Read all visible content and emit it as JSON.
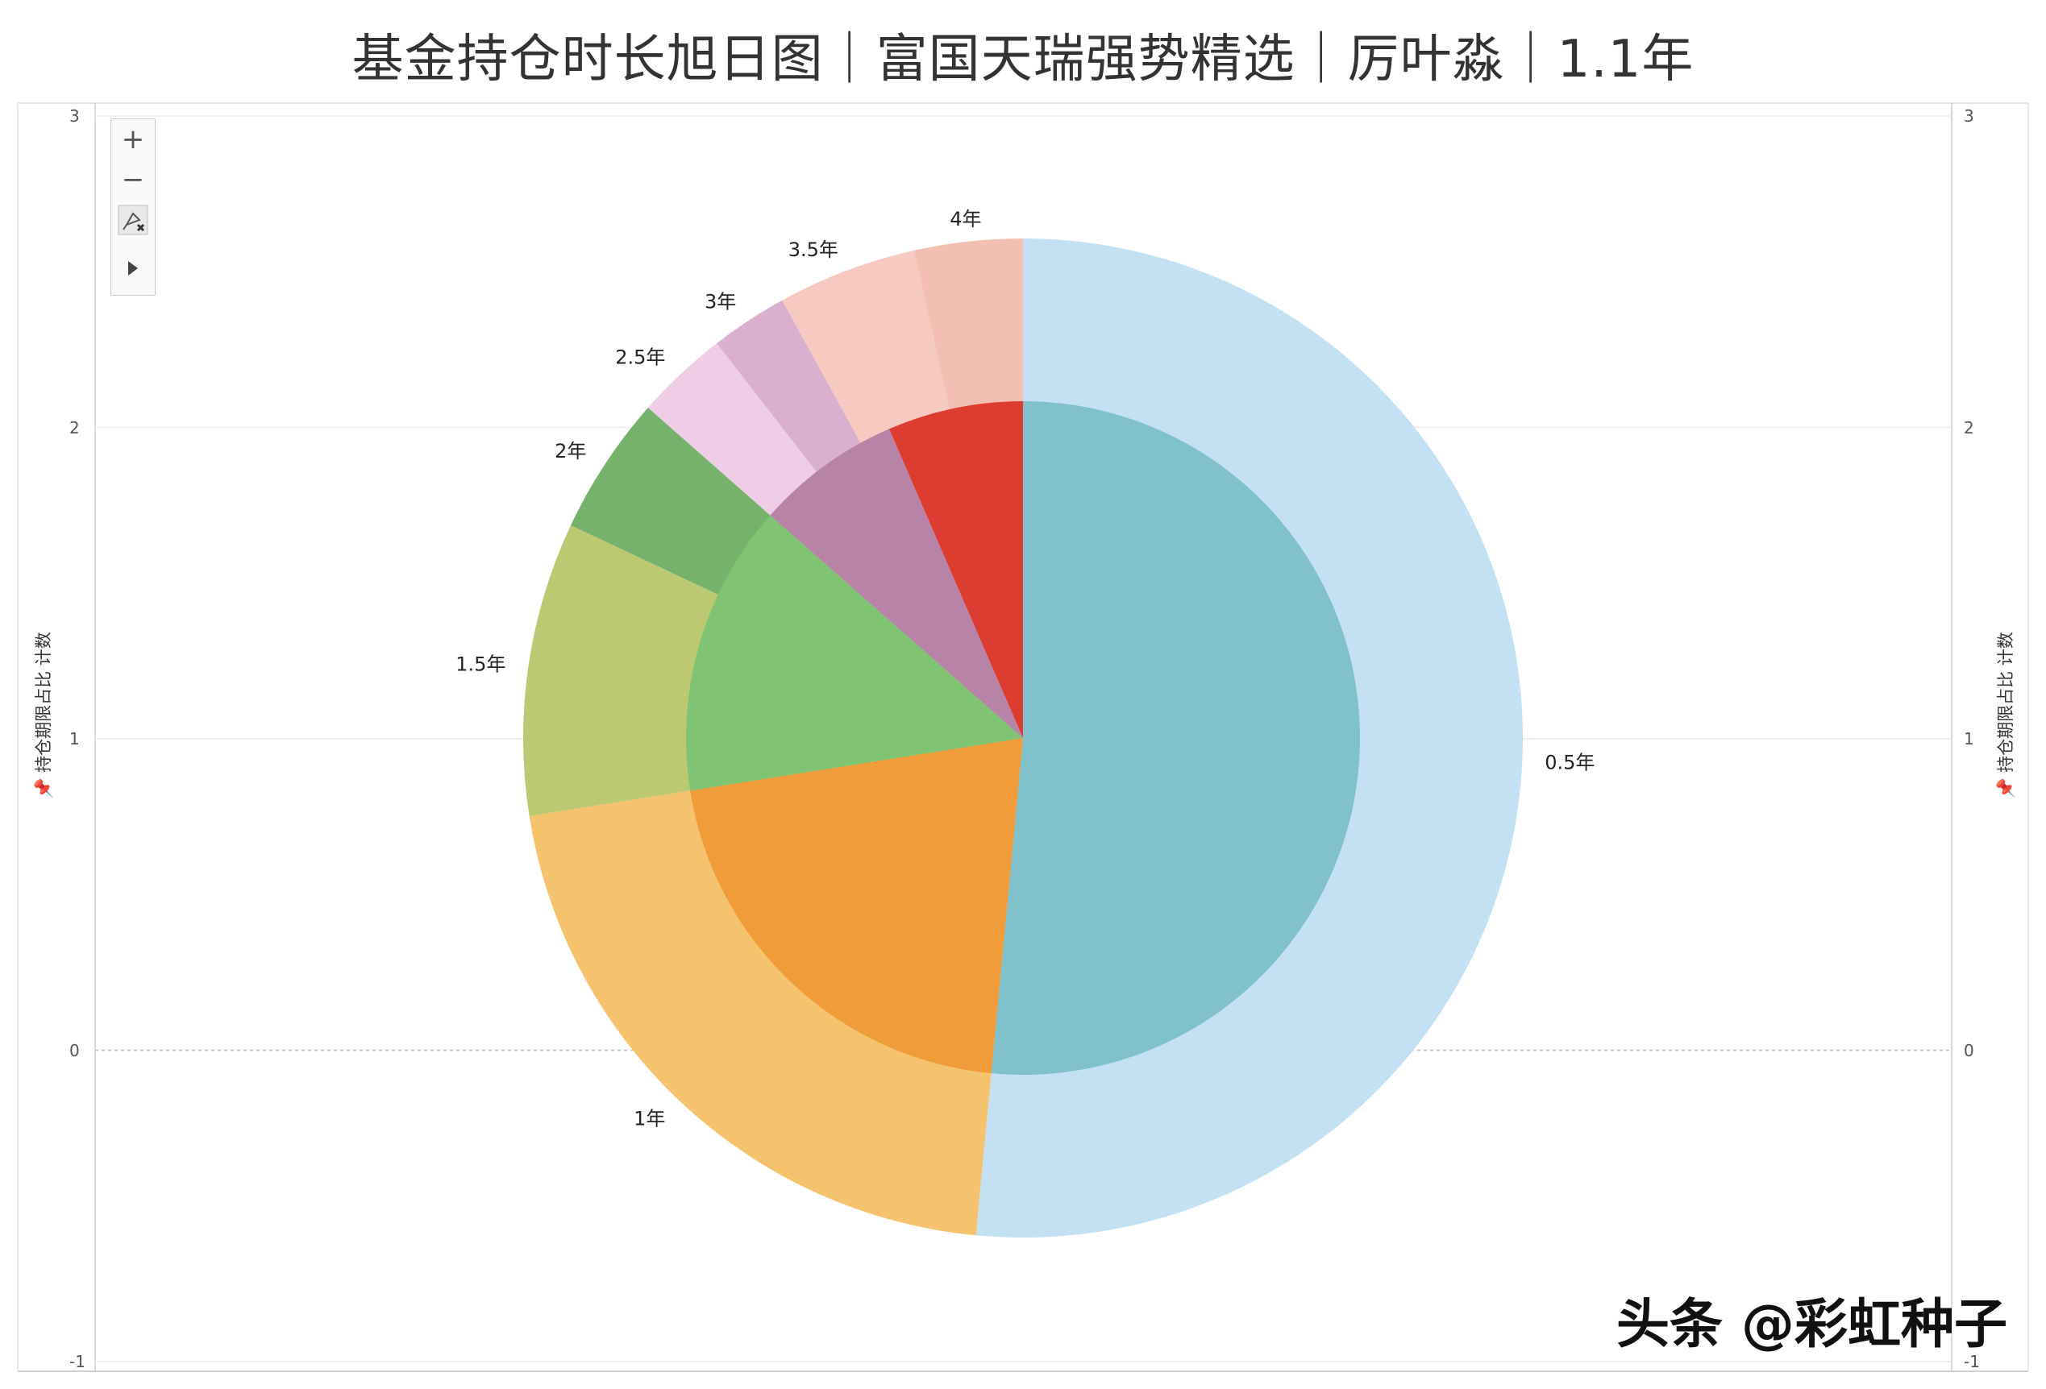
{
  "title": "基金持仓时长旭日图｜富国天瑞强势精选｜厉叶淼｜1.1年",
  "axis": {
    "left_title": "持仓期限占比 计数",
    "right_title": "持仓期限占比 计数",
    "ticks": [
      "3",
      "2",
      "1",
      "0",
      "-1"
    ]
  },
  "toolbar": {
    "zoom_in": "+",
    "zoom_out": "−"
  },
  "watermark": "头条 @彩虹种子",
  "colors": {
    "outer": [
      "#c3e1f3",
      "#f5c26d",
      "#bdc972",
      "#76b26c",
      "#efcde6",
      "#dbb0cf",
      "#f6c9c1",
      "#f4bfb3"
    ],
    "inner": [
      "#80c1cb",
      "#f19c3a",
      "#80c473",
      "#b784a7",
      "#dd3c31"
    ]
  },
  "chart_data": {
    "type": "sunburst",
    "title": "基金持仓时长旭日图｜富国天瑞强势精选｜厉叶淼｜1.1年",
    "ylabel": "持仓期限占比 计数",
    "ylim": [
      -1,
      3
    ],
    "grid": true,
    "inner_ring": [
      {
        "label": "",
        "value": 51.5
      },
      {
        "label": "",
        "value": 21.0
      },
      {
        "label": "",
        "value": 14.0
      },
      {
        "label": "",
        "value": 7.0
      },
      {
        "label": "",
        "value": 6.5
      }
    ],
    "outer_ring": [
      {
        "label": "0.5年",
        "value": 51.5
      },
      {
        "label": "1年",
        "value": 21.0
      },
      {
        "label": "1.5年",
        "value": 9.5
      },
      {
        "label": "2年",
        "value": 4.5
      },
      {
        "label": "2.5年",
        "value": 3.0
      },
      {
        "label": "3年",
        "value": 2.5
      },
      {
        "label": "3.5年",
        "value": 4.5
      },
      {
        "label": "4年",
        "value": 3.5
      }
    ]
  }
}
